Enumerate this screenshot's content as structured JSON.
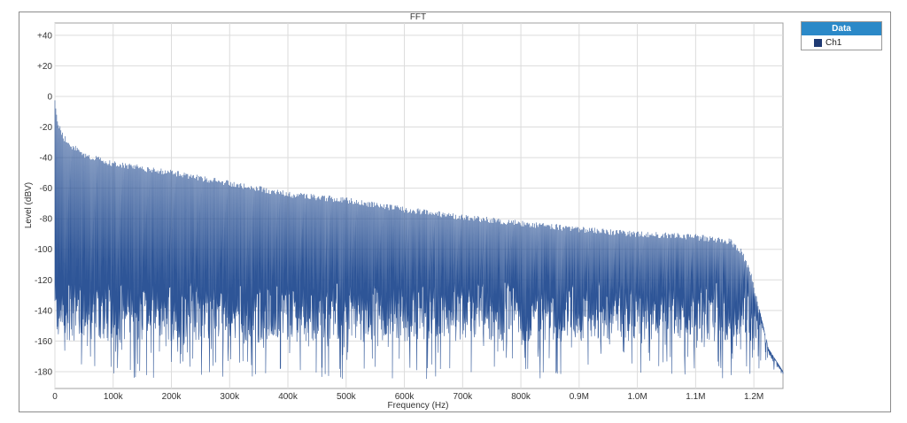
{
  "chart_data": {
    "type": "line",
    "title": "FFT",
    "xlabel": "Frequency (Hz)",
    "ylabel": "Level (dBV)",
    "xlim": [
      0,
      1250000
    ],
    "ylim": [
      -191,
      48
    ],
    "grid": true,
    "legend_placement": "right",
    "x_ticks": [
      {
        "value": 0,
        "label": "0"
      },
      {
        "value": 100000,
        "label": "100k"
      },
      {
        "value": 200000,
        "label": "200k"
      },
      {
        "value": 300000,
        "label": "300k"
      },
      {
        "value": 400000,
        "label": "400k"
      },
      {
        "value": 500000,
        "label": "500k"
      },
      {
        "value": 600000,
        "label": "600k"
      },
      {
        "value": 700000,
        "label": "700k"
      },
      {
        "value": 800000,
        "label": "800k"
      },
      {
        "value": 900000,
        "label": "0.9M"
      },
      {
        "value": 1000000,
        "label": "1.0M"
      },
      {
        "value": 1100000,
        "label": "1.1M"
      },
      {
        "value": 1200000,
        "label": "1.2M"
      }
    ],
    "y_ticks": [
      {
        "value": 40,
        "label": "+40"
      },
      {
        "value": 20,
        "label": "+20"
      },
      {
        "value": 0,
        "label": "0"
      },
      {
        "value": -20,
        "label": "-20"
      },
      {
        "value": -40,
        "label": "-40"
      },
      {
        "value": -60,
        "label": "-60"
      },
      {
        "value": -80,
        "label": "-80"
      },
      {
        "value": -100,
        "label": "-100"
      },
      {
        "value": -120,
        "label": "-120"
      },
      {
        "value": -140,
        "label": "-140"
      },
      {
        "value": -160,
        "label": "-160"
      },
      {
        "value": -180,
        "label": "-180"
      }
    ],
    "series": [
      {
        "name": "Ch1",
        "color": "#2e5597",
        "peak_envelope": {
          "x": [
            0,
            5000,
            15000,
            30000,
            50000,
            100000,
            200000,
            300000,
            400000,
            500000,
            600000,
            700000,
            800000,
            900000,
            1000000,
            1100000,
            1160000,
            1180000,
            1195000,
            1210000,
            1225000,
            1250000
          ],
          "y": [
            0,
            -15,
            -25,
            -31,
            -36,
            -42,
            -48,
            -55,
            -62,
            -66,
            -72,
            -77,
            -81,
            -85,
            -88,
            -90,
            -93,
            -100,
            -115,
            -140,
            -165,
            -180
          ]
        },
        "noise_floor_dbv": -140,
        "noise_floor_variation_dbv": [
          -160,
          -120
        ]
      }
    ]
  },
  "legend": {
    "header": "Data",
    "items": [
      {
        "label": "Ch1",
        "color": "#1f3a73"
      }
    ]
  }
}
